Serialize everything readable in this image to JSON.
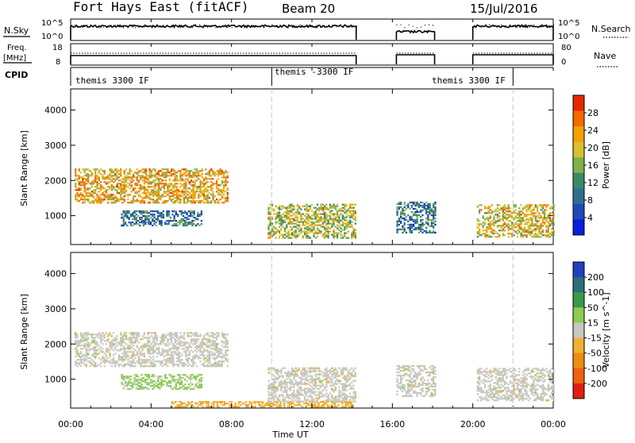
{
  "header": {
    "station": "Fort Hays East (fitACF)",
    "beam": "Beam 20",
    "date": "15/Jul/2016"
  },
  "top_panels": {
    "nsky_label": "N.Sky",
    "nsky_ticks": [
      "10^5",
      "10^0"
    ],
    "nsearch_label": "N.Search",
    "nsearch_ticks": [
      "10^5",
      "10^0"
    ],
    "freq_label": "Freq.",
    "freq_unit": "[MHz]",
    "freq_ticks": [
      "18",
      "8"
    ],
    "nave_label": "Nave",
    "nave_ticks": [
      "80",
      "0"
    ],
    "cpid_label": "CPID"
  },
  "cpid_segments": [
    {
      "label": "themis 3300 IF",
      "start": 0,
      "end": 10
    },
    {
      "label": "themis -3300 IF",
      "start": 10,
      "end": 22
    },
    {
      "label": "themis 3300 IF",
      "start": 22,
      "end": 24
    }
  ],
  "data_coverage": [
    [
      0,
      14.2
    ],
    [
      16.2,
      18.1
    ],
    [
      20.0,
      24
    ]
  ],
  "chart_data": [
    {
      "type": "heatmap",
      "panel": "power",
      "title": "",
      "xlabel": "Time UT",
      "ylabel": "Slant Range [km]",
      "xlim": [
        0,
        24
      ],
      "ylim": [
        180,
        4600
      ],
      "x_ticks": [
        "00:00",
        "04:00",
        "08:00",
        "12:00",
        "16:00",
        "20:00",
        "00:00"
      ],
      "y_ticks": [
        1000,
        2000,
        3000,
        4000
      ],
      "colorbar": {
        "label": "Power [dB]",
        "ticks": [
          "28",
          "24",
          "20",
          "16",
          "12",
          "8",
          "4"
        ],
        "range": [
          0,
          32
        ],
        "colors": [
          "#0a1ee0",
          "#2048b8",
          "#2f6f8e",
          "#3a8a6a",
          "#7fb24a",
          "#d8c030",
          "#f5a000",
          "#f56a00",
          "#e62800"
        ]
      },
      "features": [
        {
          "t": [
            0.2,
            7.8
          ],
          "range": [
            1350,
            2300
          ],
          "value": 22
        },
        {
          "t": [
            2.5,
            6.5
          ],
          "range": [
            700,
            1150
          ],
          "value": 10
        },
        {
          "t": [
            9.8,
            14.2
          ],
          "range": [
            350,
            1300
          ],
          "value": 18
        },
        {
          "t": [
            16.2,
            18.1
          ],
          "range": [
            500,
            1400
          ],
          "value": 10
        },
        {
          "t": [
            20.2,
            24
          ],
          "range": [
            380,
            1300
          ],
          "value": 20
        }
      ]
    },
    {
      "type": "heatmap",
      "panel": "velocity",
      "title": "",
      "xlabel": "Time UT",
      "ylabel": "Slant Range [km]",
      "xlim": [
        0,
        24
      ],
      "ylim": [
        180,
        4600
      ],
      "x_ticks": [
        "00:00",
        "04:00",
        "08:00",
        "12:00",
        "16:00",
        "20:00",
        "00:00"
      ],
      "y_ticks": [
        1000,
        2000,
        3000,
        4000
      ],
      "colorbar": {
        "label": "Velocity [m s^-1]",
        "ticks": [
          "200",
          "100",
          "50",
          "15",
          "-15",
          "-50",
          "-100",
          "-200"
        ],
        "range": [
          -250,
          250
        ],
        "colors": [
          "#2040c0",
          "#2e6e7a",
          "#3a9a4a",
          "#8ccc50",
          "#c8c8c0",
          "#f0b030",
          "#f08c10",
          "#f06010",
          "#e02010"
        ]
      },
      "features": [
        {
          "t": [
            0.2,
            7.8
          ],
          "range": [
            1350,
            2300
          ],
          "value": 0
        },
        {
          "t": [
            2.5,
            6.5
          ],
          "range": [
            700,
            1150
          ],
          "value": 40
        },
        {
          "t": [
            5,
            14
          ],
          "range": [
            200,
            350
          ],
          "value": -60
        },
        {
          "t": [
            9.8,
            14.2
          ],
          "range": [
            350,
            1300
          ],
          "value": 0
        },
        {
          "t": [
            16.2,
            18.1
          ],
          "range": [
            500,
            1400
          ],
          "value": 0
        },
        {
          "t": [
            20.2,
            24
          ],
          "range": [
            380,
            1300
          ],
          "value": 0
        }
      ]
    }
  ]
}
